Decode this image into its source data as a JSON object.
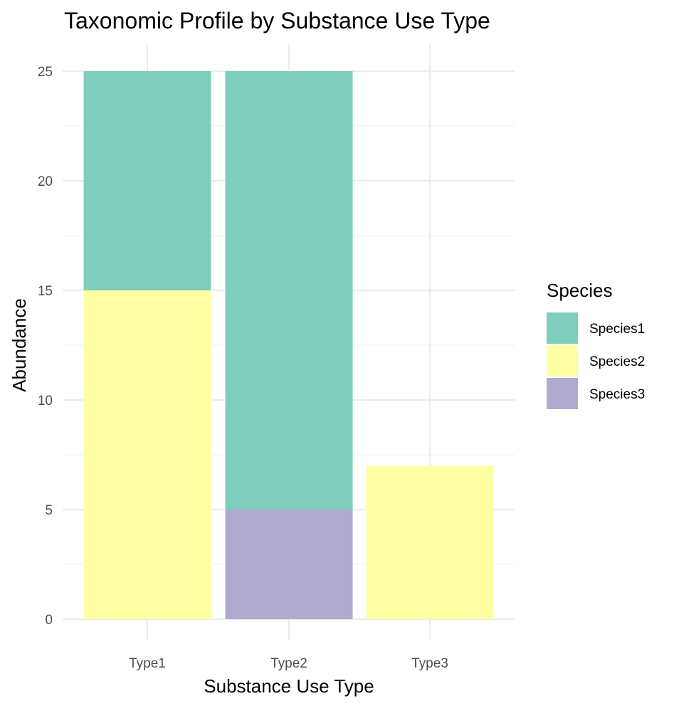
{
  "chart_data": {
    "type": "bar",
    "stacked": true,
    "title": "Taxonomic Profile by Substance Use Type",
    "xlabel": "Substance Use Type",
    "ylabel": "Abundance",
    "categories": [
      "Type1",
      "Type2",
      "Type3"
    ],
    "ylim": [
      0,
      25
    ],
    "yticks": [
      0,
      5,
      10,
      15,
      20,
      25
    ],
    "grid": true,
    "legend": {
      "title": "Species",
      "placement": "right"
    },
    "series": [
      {
        "name": "Species1",
        "color": "#7FCDBB",
        "values": [
          10,
          20,
          0
        ]
      },
      {
        "name": "Species2",
        "color": "#FFFFA3",
        "values": [
          15,
          0,
          7
        ]
      },
      {
        "name": "Species3",
        "color": "#B0AAD0",
        "values": [
          0,
          5,
          0
        ]
      }
    ],
    "stack_order_bottom_to_top": [
      "Species3",
      "Species2",
      "Species1"
    ]
  }
}
